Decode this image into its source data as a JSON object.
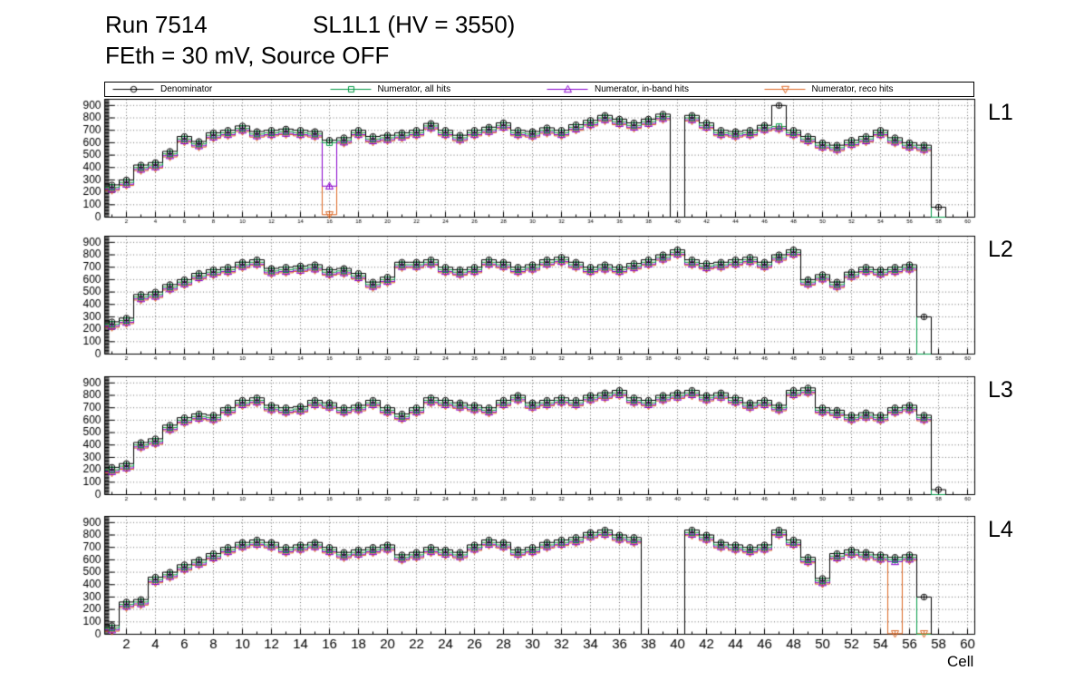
{
  "header": {
    "run": "Run 7514",
    "config": "SL1L1 (HV = 3550)",
    "threshold": "FEth = 30 mV, Source OFF"
  },
  "chart_data": {
    "type": "line",
    "title": "Run 7514  SL1L1 (HV = 3550)",
    "subtitle": "FEth = 30 mV, Source OFF",
    "xlabel": "Cell",
    "ylabel": "",
    "grid": true,
    "legend_position": "top",
    "xlim": [
      0.5,
      60.5
    ],
    "ylim": [
      0,
      950
    ],
    "xticks": [
      2,
      4,
      6,
      8,
      10,
      12,
      14,
      16,
      18,
      20,
      22,
      24,
      26,
      28,
      30,
      32,
      34,
      36,
      38,
      40,
      42,
      44,
      46,
      48,
      50,
      52,
      54,
      56,
      58,
      60
    ],
    "yticks": [
      0,
      100,
      200,
      300,
      400,
      500,
      600,
      700,
      800,
      900
    ],
    "x": [
      1,
      2,
      3,
      4,
      5,
      6,
      7,
      8,
      9,
      10,
      11,
      12,
      13,
      14,
      15,
      16,
      17,
      18,
      19,
      20,
      21,
      22,
      23,
      24,
      25,
      26,
      27,
      28,
      29,
      30,
      31,
      32,
      33,
      34,
      35,
      36,
      37,
      38,
      39,
      40,
      41,
      42,
      43,
      44,
      45,
      46,
      47,
      48,
      49,
      50,
      51,
      52,
      53,
      54,
      55,
      56,
      57,
      58,
      59,
      60
    ],
    "series_meta": [
      {
        "key": "denominator",
        "name": "Denominator",
        "color": "#000000",
        "marker": "circle"
      },
      {
        "key": "numerator_all",
        "name": "Numerator, all hits",
        "color": "#009944",
        "marker": "square"
      },
      {
        "key": "numerator_inband",
        "name": "Numerator, in-band hits",
        "color": "#8800cc",
        "marker": "triangle-up"
      },
      {
        "key": "numerator_reco",
        "name": "Numerator, reco hits",
        "color": "#dd6622",
        "marker": "triangle-down"
      }
    ],
    "panels": [
      {
        "label": "L1",
        "series": {
          "denominator": [
            260,
            300,
            420,
            440,
            530,
            650,
            610,
            680,
            700,
            735,
            690,
            700,
            710,
            700,
            690,
            620,
            640,
            700,
            650,
            660,
            680,
            700,
            755,
            700,
            660,
            700,
            725,
            760,
            700,
            690,
            720,
            700,
            745,
            780,
            820,
            790,
            760,
            790,
            830,
            0,
            820,
            760,
            700,
            690,
            700,
            740,
            900,
            700,
            650,
            600,
            580,
            620,
            650,
            700,
            640,
            600,
            580,
            80,
            0,
            0
          ],
          "numerator_all": [
            240,
            280,
            400,
            420,
            510,
            630,
            590,
            660,
            680,
            715,
            670,
            680,
            690,
            680,
            670,
            600,
            620,
            680,
            630,
            640,
            660,
            680,
            735,
            680,
            640,
            680,
            705,
            740,
            680,
            670,
            700,
            680,
            725,
            760,
            800,
            770,
            740,
            770,
            810,
            0,
            800,
            740,
            680,
            670,
            680,
            720,
            730,
            680,
            630,
            580,
            560,
            600,
            630,
            680,
            620,
            580,
            560,
            0,
            0,
            0
          ],
          "numerator_inband": [
            225,
            265,
            385,
            405,
            495,
            615,
            575,
            645,
            665,
            700,
            655,
            665,
            675,
            665,
            655,
            250,
            605,
            665,
            615,
            625,
            645,
            665,
            720,
            665,
            625,
            665,
            690,
            725,
            665,
            655,
            685,
            665,
            710,
            745,
            785,
            755,
            725,
            755,
            795,
            0,
            785,
            725,
            665,
            655,
            665,
            705,
            715,
            665,
            615,
            565,
            545,
            585,
            615,
            665,
            605,
            565,
            545,
            0,
            0,
            0
          ],
          "numerator_reco": [
            215,
            255,
            375,
            395,
            485,
            605,
            565,
            635,
            655,
            690,
            645,
            655,
            665,
            655,
            645,
            20,
            595,
            655,
            605,
            615,
            635,
            655,
            710,
            655,
            615,
            655,
            680,
            715,
            655,
            645,
            675,
            655,
            700,
            735,
            775,
            745,
            715,
            745,
            785,
            0,
            775,
            715,
            655,
            645,
            655,
            695,
            705,
            655,
            605,
            555,
            535,
            575,
            605,
            655,
            595,
            555,
            535,
            0,
            0,
            0
          ]
        }
      },
      {
        "label": "L2",
        "series": {
          "denominator": [
            260,
            290,
            480,
            500,
            560,
            600,
            650,
            680,
            700,
            740,
            760,
            690,
            700,
            710,
            720,
            680,
            690,
            650,
            580,
            620,
            740,
            740,
            760,
            700,
            680,
            700,
            760,
            740,
            700,
            720,
            760,
            780,
            740,
            700,
            720,
            700,
            730,
            760,
            800,
            840,
            760,
            730,
            740,
            760,
            780,
            740,
            800,
            840,
            600,
            640,
            580,
            660,
            700,
            680,
            700,
            720,
            300,
            0,
            0,
            0
          ],
          "numerator_all": [
            240,
            270,
            460,
            480,
            540,
            580,
            630,
            660,
            680,
            720,
            740,
            670,
            680,
            690,
            700,
            660,
            670,
            630,
            560,
            600,
            720,
            720,
            740,
            680,
            660,
            680,
            740,
            720,
            680,
            700,
            740,
            760,
            720,
            680,
            700,
            680,
            710,
            740,
            780,
            820,
            740,
            710,
            720,
            740,
            760,
            720,
            780,
            820,
            580,
            620,
            560,
            640,
            680,
            660,
            680,
            700,
            0,
            0,
            0,
            0
          ],
          "numerator_inband": [
            225,
            255,
            445,
            465,
            525,
            565,
            615,
            645,
            665,
            705,
            725,
            655,
            665,
            675,
            685,
            645,
            655,
            615,
            545,
            585,
            705,
            705,
            725,
            665,
            645,
            665,
            725,
            705,
            665,
            685,
            725,
            745,
            705,
            665,
            685,
            665,
            695,
            725,
            765,
            805,
            725,
            695,
            705,
            725,
            745,
            705,
            765,
            805,
            565,
            605,
            545,
            625,
            665,
            645,
            665,
            685,
            0,
            0,
            0,
            0
          ],
          "numerator_reco": [
            215,
            245,
            435,
            455,
            515,
            555,
            605,
            635,
            655,
            695,
            715,
            645,
            655,
            665,
            675,
            635,
            645,
            605,
            535,
            575,
            695,
            695,
            715,
            655,
            635,
            655,
            715,
            695,
            655,
            675,
            715,
            735,
            695,
            655,
            675,
            655,
            685,
            715,
            755,
            795,
            715,
            685,
            695,
            715,
            735,
            695,
            755,
            795,
            555,
            595,
            535,
            615,
            655,
            635,
            655,
            675,
            0,
            0,
            0,
            0
          ]
        }
      },
      {
        "label": "L3",
        "series": {
          "denominator": [
            220,
            250,
            420,
            450,
            560,
            620,
            650,
            640,
            700,
            760,
            780,
            720,
            700,
            710,
            760,
            740,
            700,
            720,
            760,
            700,
            650,
            700,
            780,
            760,
            740,
            720,
            700,
            760,
            800,
            740,
            760,
            780,
            760,
            800,
            820,
            840,
            780,
            760,
            800,
            820,
            840,
            800,
            820,
            780,
            740,
            760,
            720,
            840,
            860,
            700,
            680,
            640,
            660,
            640,
            700,
            720,
            640,
            40,
            0,
            0
          ],
          "numerator_all": [
            200,
            230,
            400,
            430,
            540,
            600,
            630,
            620,
            680,
            740,
            760,
            700,
            680,
            690,
            740,
            720,
            680,
            700,
            740,
            680,
            630,
            680,
            760,
            740,
            720,
            700,
            680,
            740,
            780,
            720,
            740,
            760,
            740,
            780,
            800,
            820,
            760,
            740,
            780,
            800,
            820,
            780,
            800,
            760,
            720,
            740,
            700,
            820,
            840,
            680,
            660,
            620,
            640,
            620,
            680,
            700,
            620,
            0,
            0,
            0
          ],
          "numerator_inband": [
            185,
            215,
            385,
            415,
            525,
            585,
            615,
            605,
            665,
            725,
            745,
            685,
            665,
            675,
            725,
            705,
            665,
            685,
            725,
            665,
            615,
            665,
            745,
            725,
            705,
            685,
            665,
            725,
            765,
            705,
            725,
            745,
            725,
            765,
            785,
            805,
            745,
            725,
            765,
            785,
            805,
            765,
            785,
            745,
            705,
            725,
            685,
            805,
            825,
            665,
            645,
            605,
            625,
            605,
            665,
            685,
            605,
            0,
            0,
            0
          ],
          "numerator_reco": [
            175,
            205,
            375,
            405,
            515,
            575,
            605,
            595,
            655,
            715,
            735,
            675,
            655,
            665,
            715,
            695,
            655,
            675,
            715,
            655,
            605,
            655,
            735,
            715,
            695,
            675,
            655,
            715,
            755,
            695,
            715,
            735,
            715,
            755,
            775,
            795,
            735,
            715,
            755,
            775,
            795,
            755,
            775,
            735,
            695,
            715,
            675,
            795,
            815,
            655,
            635,
            595,
            615,
            595,
            655,
            675,
            595,
            0,
            0,
            0
          ]
        }
      },
      {
        "label": "L4",
        "series": {
          "denominator": [
            70,
            260,
            280,
            460,
            500,
            560,
            600,
            650,
            700,
            740,
            760,
            740,
            700,
            720,
            740,
            700,
            660,
            680,
            700,
            720,
            640,
            660,
            700,
            680,
            660,
            720,
            760,
            740,
            680,
            700,
            740,
            760,
            780,
            820,
            840,
            800,
            780,
            0,
            0,
            0,
            840,
            800,
            740,
            720,
            700,
            720,
            840,
            760,
            620,
            450,
            650,
            680,
            660,
            640,
            620,
            640,
            300,
            0,
            0,
            0
          ],
          "numerator_all": [
            50,
            240,
            260,
            440,
            480,
            540,
            580,
            630,
            680,
            720,
            740,
            720,
            680,
            700,
            720,
            680,
            640,
            660,
            680,
            700,
            620,
            640,
            680,
            660,
            640,
            700,
            740,
            720,
            660,
            680,
            720,
            740,
            760,
            800,
            820,
            780,
            760,
            0,
            0,
            0,
            820,
            780,
            720,
            700,
            680,
            700,
            820,
            740,
            600,
            430,
            630,
            660,
            640,
            620,
            600,
            620,
            0,
            0,
            0,
            0
          ],
          "numerator_inband": [
            35,
            225,
            245,
            425,
            465,
            525,
            565,
            615,
            665,
            705,
            725,
            705,
            665,
            685,
            705,
            665,
            625,
            645,
            665,
            685,
            605,
            625,
            665,
            645,
            625,
            685,
            725,
            705,
            645,
            665,
            705,
            725,
            745,
            785,
            805,
            765,
            745,
            0,
            0,
            0,
            805,
            765,
            705,
            685,
            665,
            685,
            805,
            725,
            585,
            415,
            615,
            645,
            625,
            605,
            585,
            605,
            0,
            0,
            0,
            0
          ],
          "numerator_reco": [
            25,
            215,
            235,
            415,
            455,
            515,
            555,
            605,
            655,
            695,
            715,
            695,
            655,
            675,
            695,
            655,
            615,
            635,
            655,
            675,
            595,
            615,
            655,
            635,
            615,
            675,
            715,
            695,
            635,
            655,
            695,
            715,
            735,
            775,
            795,
            755,
            735,
            0,
            0,
            0,
            795,
            755,
            695,
            675,
            655,
            675,
            795,
            715,
            575,
            405,
            605,
            635,
            615,
            595,
            5,
            595,
            5,
            0,
            0,
            0
          ]
        }
      }
    ]
  }
}
